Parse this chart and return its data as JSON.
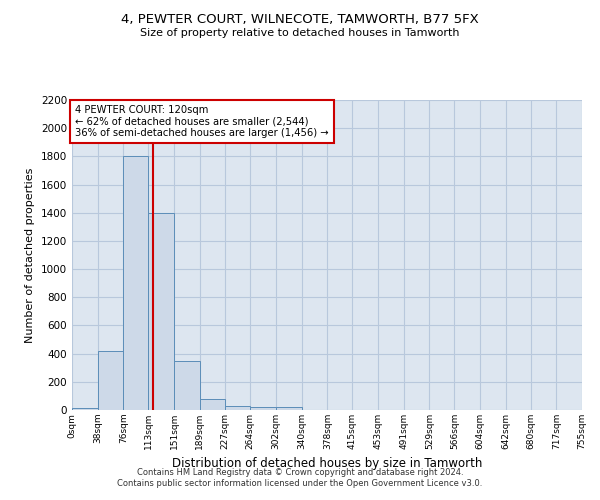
{
  "title": "4, PEWTER COURT, WILNECOTE, TAMWORTH, B77 5FX",
  "subtitle": "Size of property relative to detached houses in Tamworth",
  "xlabel": "Distribution of detached houses by size in Tamworth",
  "ylabel": "Number of detached properties",
  "footer_line1": "Contains HM Land Registry data © Crown copyright and database right 2024.",
  "footer_line2": "Contains public sector information licensed under the Open Government Licence v3.0.",
  "bar_color": "#cdd9e8",
  "bar_edge_color": "#5b8db8",
  "grid_color": "#b8c8dc",
  "background_color": "#dde6f0",
  "annotation_box_color": "#cc0000",
  "vline_color": "#cc0000",
  "property_size": 120,
  "property_label": "4 PEWTER COURT: 120sqm",
  "annotation_line1": "← 62% of detached houses are smaller (2,544)",
  "annotation_line2": "36% of semi-detached houses are larger (1,456) →",
  "bin_edges": [
    0,
    38,
    76,
    113,
    151,
    189,
    227,
    264,
    302,
    340,
    378,
    415,
    453,
    491,
    529,
    566,
    604,
    642,
    680,
    717,
    755
  ],
  "bin_counts": [
    15,
    420,
    1800,
    1400,
    350,
    75,
    25,
    20,
    20,
    0,
    0,
    0,
    0,
    0,
    0,
    0,
    0,
    0,
    0,
    0
  ],
  "ylim": [
    0,
    2200
  ],
  "yticks": [
    0,
    200,
    400,
    600,
    800,
    1000,
    1200,
    1400,
    1600,
    1800,
    2000,
    2200
  ]
}
